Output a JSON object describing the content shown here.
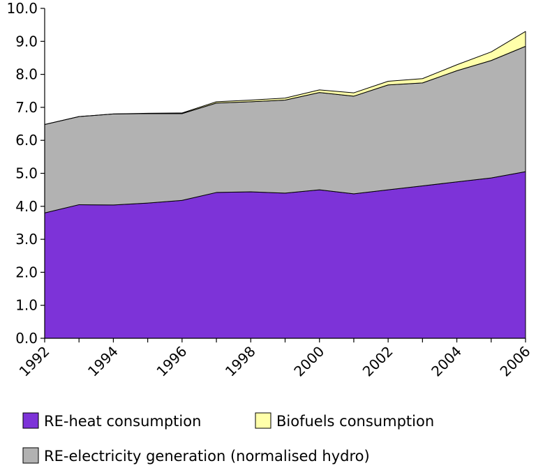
{
  "chart_data": {
    "type": "area",
    "stacked": true,
    "x": [
      1992,
      1993,
      1994,
      1995,
      1996,
      1997,
      1998,
      1999,
      2000,
      2001,
      2002,
      2003,
      2004,
      2005,
      2006
    ],
    "x_tick_labels": [
      "1992",
      "1994",
      "1996",
      "1998",
      "2000",
      "2002",
      "2004",
      "2006"
    ],
    "y_tick_labels": [
      "0.0",
      "1.0",
      "2.0",
      "3.0",
      "4.0",
      "5.0",
      "6.0",
      "7.0",
      "8.0",
      "9.0",
      "10.0"
    ],
    "ylim": [
      0,
      10
    ],
    "xlim": [
      1992,
      2006
    ],
    "grid": false,
    "legend_position": "bottom",
    "series": [
      {
        "name": "RE-heat consumption",
        "color": "#7d33d8",
        "values": [
          3.8,
          4.05,
          4.04,
          4.1,
          4.18,
          4.42,
          4.44,
          4.4,
          4.5,
          4.38,
          4.5,
          4.62,
          4.74,
          4.86,
          5.05
        ]
      },
      {
        "name": "RE-electricity generation (normalised hydro)",
        "color": "#b2b2b2",
        "values": [
          2.68,
          2.67,
          2.76,
          2.71,
          2.63,
          2.71,
          2.73,
          2.82,
          2.95,
          2.96,
          3.18,
          3.12,
          3.37,
          3.56,
          3.8
        ]
      },
      {
        "name": "Biofuels consumption",
        "color": "#ffffaa",
        "values": [
          0.0,
          0.0,
          0.0,
          0.01,
          0.02,
          0.04,
          0.05,
          0.06,
          0.08,
          0.1,
          0.11,
          0.13,
          0.18,
          0.26,
          0.45
        ]
      }
    ],
    "legend": [
      {
        "label": "RE-heat consumption",
        "color": "#7d33d8"
      },
      {
        "label": "Biofuels consumption",
        "color": "#ffffaa"
      },
      {
        "label": "RE-electricity generation (normalised hydro)",
        "color": "#b2b2b2"
      }
    ]
  }
}
